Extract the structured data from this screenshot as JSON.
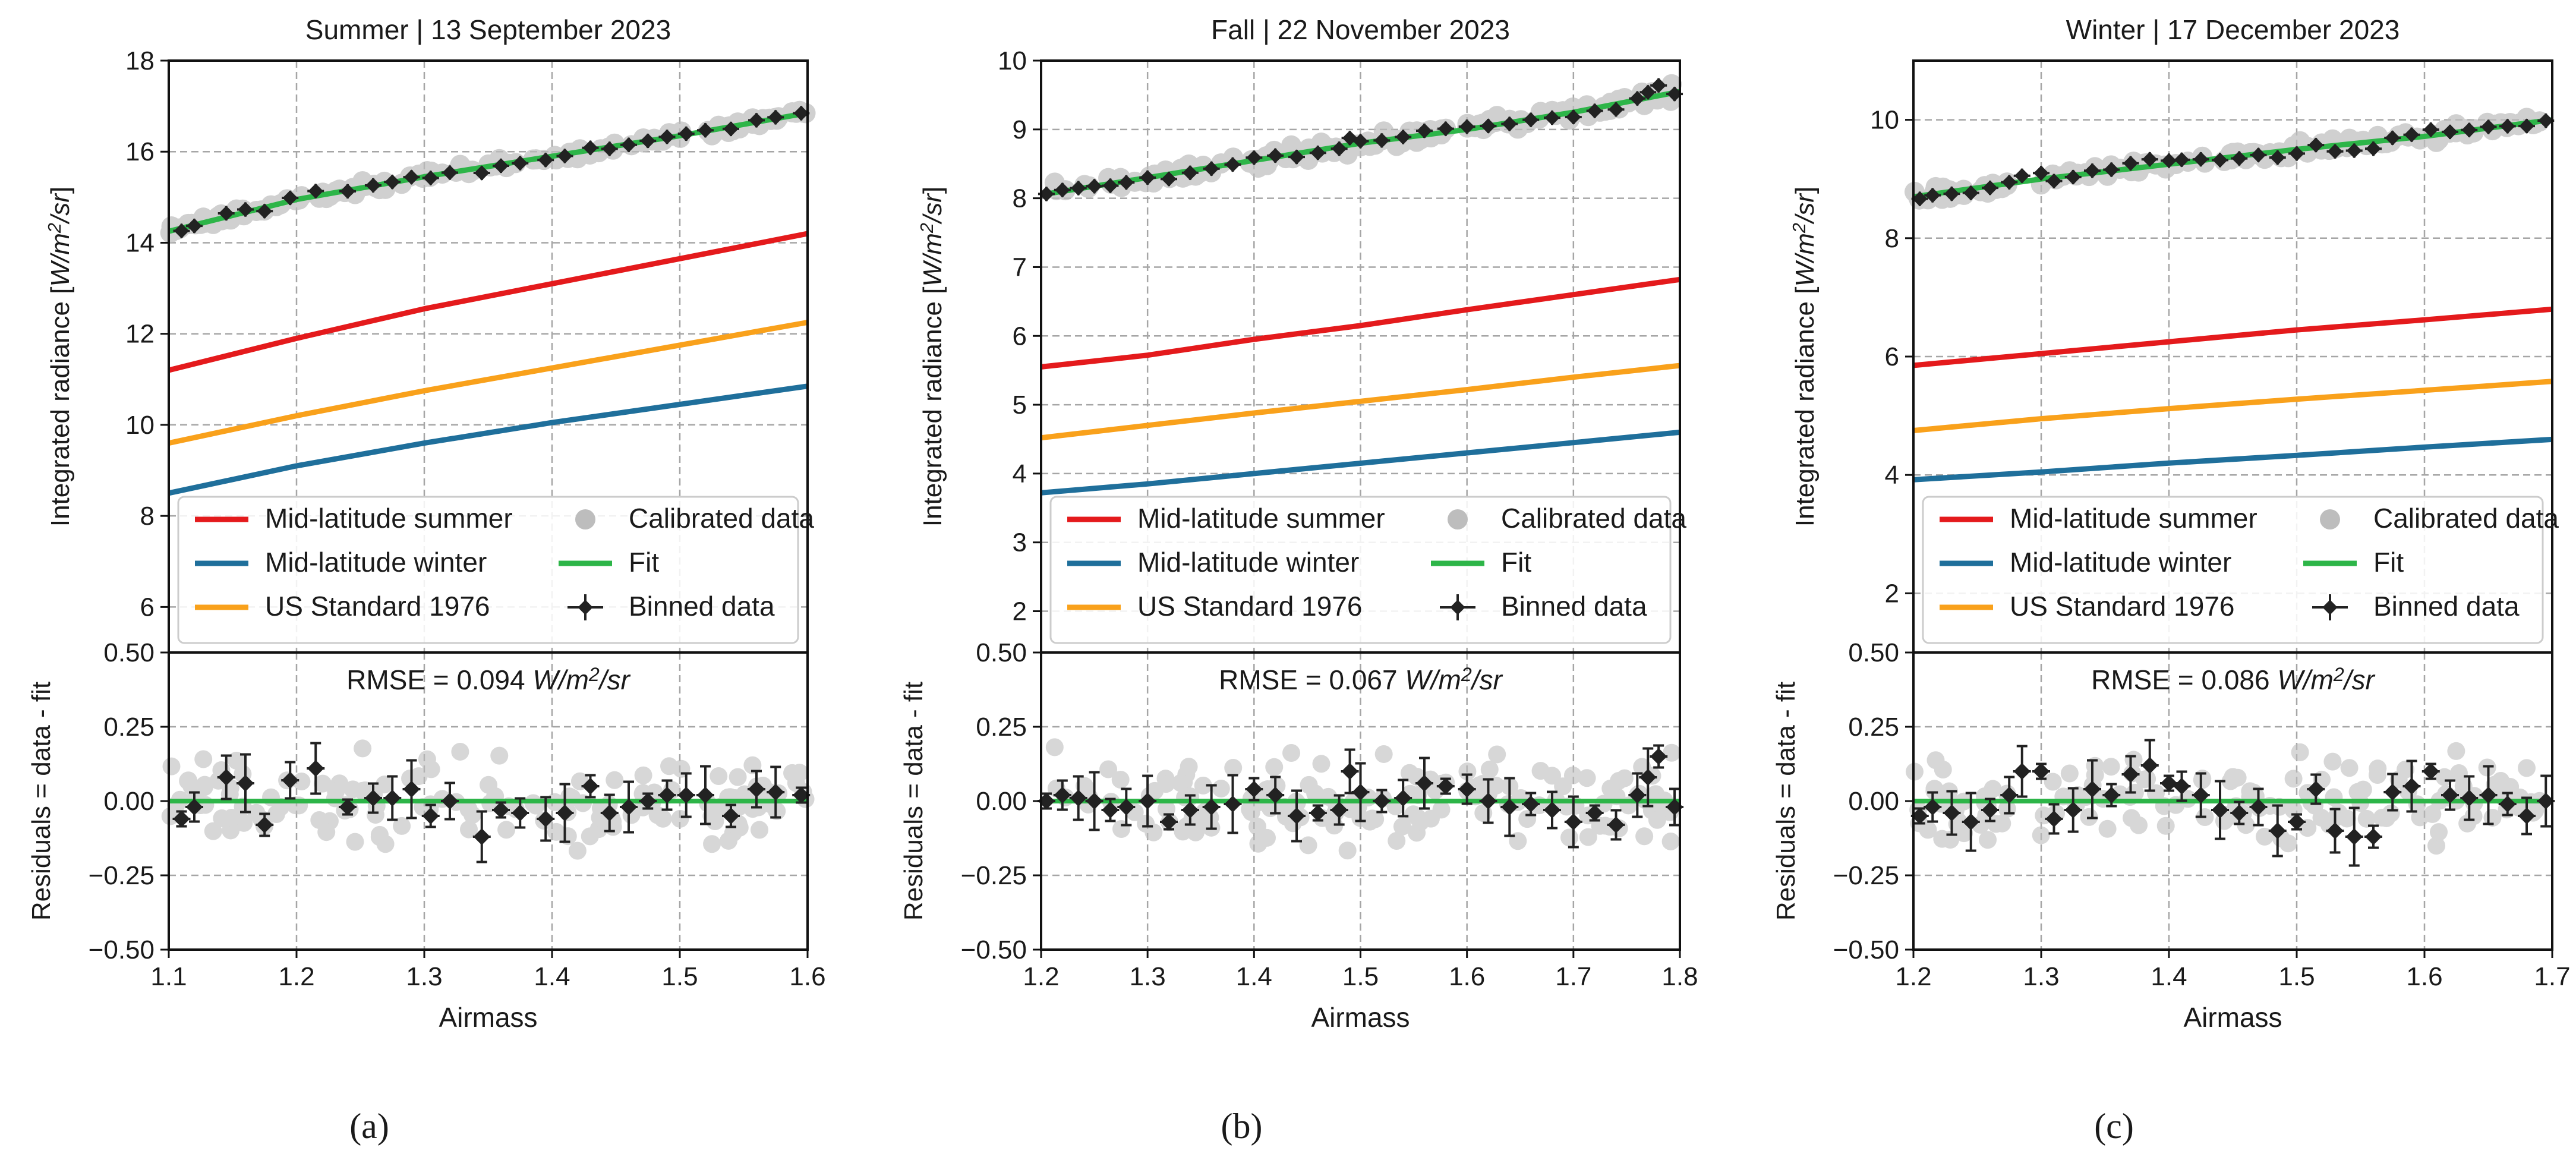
{
  "figure": {
    "legend_entries": {
      "mls": "Mid-latitude summer",
      "mlw": "Mid-latitude winter",
      "us": "US Standard 1976",
      "cal": "Calibrated data",
      "fit": "Fit",
      "bin": "Binned data"
    },
    "colors": {
      "mls": "#e41a1c",
      "mlw": "#1f6f9b",
      "us": "#f9a11b",
      "fit": "#2db548",
      "calibrated": "#bdbdbd",
      "binned": "#222222",
      "grid": "#a6a6a6"
    }
  },
  "chart_data": [
    {
      "type": "line",
      "panel_label": "(a)",
      "title": "Summer | 13 September 2023",
      "xlabel": "Airmass",
      "ylabel_top": "Integrated radiance [W/m²/sr]",
      "ylabel_bottom": "Residuals = data - fit",
      "xlim": [
        1.1,
        1.6
      ],
      "ylim_top": [
        5,
        18
      ],
      "ylim_bottom": [
        -0.5,
        0.5
      ],
      "x_ticks": [
        "1.1",
        "1.2",
        "1.3",
        "1.4",
        "1.5",
        "1.6"
      ],
      "y_ticks_top": [
        "6",
        "8",
        "10",
        "12",
        "14",
        "16",
        "18"
      ],
      "y_ticks_bottom": [
        "−0.50",
        "−0.25",
        "0.00",
        "0.25",
        "0.50"
      ],
      "rmse_text": "RMSE = 0.094 W/m²/sr",
      "grid": true,
      "legend_position": "lower center",
      "series": [
        {
          "name": "Mid-latitude summer",
          "key": "mls",
          "x": [
            1.1,
            1.2,
            1.3,
            1.4,
            1.5,
            1.6
          ],
          "y": [
            11.2,
            11.9,
            12.55,
            13.1,
            13.65,
            14.2
          ]
        },
        {
          "name": "Mid-latitude winter",
          "key": "mlw",
          "x": [
            1.1,
            1.2,
            1.3,
            1.4,
            1.5,
            1.6
          ],
          "y": [
            8.5,
            9.1,
            9.6,
            10.05,
            10.45,
            10.85
          ]
        },
        {
          "name": "US Standard 1976",
          "key": "us",
          "x": [
            1.1,
            1.2,
            1.3,
            1.4,
            1.5,
            1.6
          ],
          "y": [
            9.6,
            10.2,
            10.75,
            11.25,
            11.75,
            12.25
          ]
        },
        {
          "name": "Fit",
          "key": "fit",
          "x": [
            1.1,
            1.2,
            1.3,
            1.4,
            1.5,
            1.6
          ],
          "y": [
            14.25,
            14.95,
            15.45,
            15.9,
            16.35,
            16.85
          ]
        }
      ],
      "binned": {
        "x": [
          1.11,
          1.12,
          1.145,
          1.16,
          1.175,
          1.195,
          1.215,
          1.24,
          1.26,
          1.275,
          1.29,
          1.305,
          1.32,
          1.345,
          1.36,
          1.375,
          1.395,
          1.41,
          1.43,
          1.445,
          1.46,
          1.475,
          1.49,
          1.505,
          1.52,
          1.54,
          1.56,
          1.575,
          1.595
        ],
        "residual": [
          -0.06,
          -0.02,
          0.08,
          0.06,
          -0.08,
          0.07,
          0.11,
          -0.02,
          0.01,
          0.01,
          0.04,
          -0.05,
          0.0,
          -0.12,
          -0.03,
          -0.04,
          -0.06,
          -0.04,
          0.05,
          -0.04,
          -0.02,
          0.0,
          0.02,
          0.02,
          0.02,
          -0.05,
          0.04,
          0.03,
          0.02
        ]
      }
    },
    {
      "type": "line",
      "panel_label": "(b)",
      "title": "Fall | 22 November 2023",
      "xlabel": "Airmass",
      "ylabel_top": "Integrated radiance [W/m²/sr]",
      "ylabel_bottom": "Residuals = data - fit",
      "xlim": [
        1.2,
        1.8
      ],
      "ylim_top": [
        1.4,
        10
      ],
      "ylim_bottom": [
        -0.5,
        0.5
      ],
      "x_ticks": [
        "1.2",
        "1.3",
        "1.4",
        "1.5",
        "1.6",
        "1.7",
        "1.8"
      ],
      "y_ticks_top": [
        "2",
        "3",
        "4",
        "5",
        "6",
        "7",
        "8",
        "9",
        "10"
      ],
      "y_ticks_bottom": [
        "−0.50",
        "−0.25",
        "0.00",
        "0.25",
        "0.50"
      ],
      "rmse_text": "RMSE = 0.067 W/m²/sr",
      "grid": true,
      "legend_position": "lower center",
      "series": [
        {
          "name": "Mid-latitude summer",
          "key": "mls",
          "x": [
            1.2,
            1.3,
            1.4,
            1.5,
            1.6,
            1.7,
            1.8
          ],
          "y": [
            5.55,
            5.72,
            5.95,
            6.15,
            6.38,
            6.6,
            6.82
          ]
        },
        {
          "name": "Mid-latitude winter",
          "key": "mlw",
          "x": [
            1.2,
            1.3,
            1.4,
            1.5,
            1.6,
            1.7,
            1.8
          ],
          "y": [
            3.72,
            3.85,
            4.0,
            4.15,
            4.3,
            4.45,
            4.6
          ]
        },
        {
          "name": "US Standard 1976",
          "key": "us",
          "x": [
            1.2,
            1.3,
            1.4,
            1.5,
            1.6,
            1.7,
            1.8
          ],
          "y": [
            4.52,
            4.7,
            4.88,
            5.05,
            5.22,
            5.4,
            5.57
          ]
        },
        {
          "name": "Fit",
          "key": "fit",
          "x": [
            1.2,
            1.3,
            1.4,
            1.5,
            1.6,
            1.7,
            1.8
          ],
          "y": [
            8.05,
            8.3,
            8.55,
            8.8,
            9.0,
            9.25,
            9.55
          ]
        }
      ],
      "binned": {
        "x": [
          1.205,
          1.22,
          1.235,
          1.25,
          1.265,
          1.28,
          1.3,
          1.32,
          1.34,
          1.36,
          1.38,
          1.4,
          1.42,
          1.44,
          1.46,
          1.48,
          1.49,
          1.5,
          1.52,
          1.54,
          1.56,
          1.58,
          1.6,
          1.62,
          1.64,
          1.66,
          1.68,
          1.7,
          1.72,
          1.74,
          1.76,
          1.77,
          1.78,
          1.795
        ],
        "residual": [
          0.0,
          0.02,
          0.01,
          0.0,
          -0.03,
          -0.02,
          0.0,
          -0.07,
          -0.03,
          -0.02,
          -0.01,
          0.04,
          0.02,
          -0.05,
          -0.04,
          -0.03,
          0.1,
          0.03,
          0.0,
          0.01,
          0.06,
          0.05,
          0.04,
          0.0,
          -0.02,
          -0.01,
          -0.03,
          -0.07,
          -0.04,
          -0.08,
          0.02,
          0.08,
          0.15,
          -0.02
        ]
      }
    },
    {
      "type": "line",
      "panel_label": "(c)",
      "title": "Winter | 17 December 2023",
      "xlabel": "Airmass",
      "ylabel_top": "Integrated radiance [W/m²/sr]",
      "ylabel_bottom": "Residuals = data - fit",
      "xlim": [
        1.2,
        1.7
      ],
      "ylim_top": [
        1,
        11
      ],
      "ylim_bottom": [
        -0.5,
        0.5
      ],
      "x_ticks": [
        "1.2",
        "1.3",
        "1.4",
        "1.5",
        "1.6",
        "1.7"
      ],
      "y_ticks_top": [
        "2",
        "4",
        "6",
        "8",
        "10"
      ],
      "y_ticks_bottom": [
        "−0.50",
        "−0.25",
        "0.00",
        "0.25",
        "0.50"
      ],
      "rmse_text": "RMSE = 0.086 W/m²/sr",
      "grid": true,
      "legend_position": "lower center",
      "series": [
        {
          "name": "Mid-latitude summer",
          "key": "mls",
          "x": [
            1.2,
            1.3,
            1.4,
            1.5,
            1.6,
            1.7
          ],
          "y": [
            5.85,
            6.05,
            6.25,
            6.45,
            6.62,
            6.8
          ]
        },
        {
          "name": "Mid-latitude winter",
          "key": "mlw",
          "x": [
            1.2,
            1.3,
            1.4,
            1.5,
            1.6,
            1.7
          ],
          "y": [
            3.92,
            4.05,
            4.2,
            4.33,
            4.47,
            4.6
          ]
        },
        {
          "name": "US Standard 1976",
          "key": "us",
          "x": [
            1.2,
            1.3,
            1.4,
            1.5,
            1.6,
            1.7
          ],
          "y": [
            4.75,
            4.95,
            5.12,
            5.28,
            5.43,
            5.58
          ]
        },
        {
          "name": "Fit",
          "key": "fit",
          "x": [
            1.2,
            1.3,
            1.4,
            1.5,
            1.6,
            1.7
          ],
          "y": [
            8.7,
            9.0,
            9.25,
            9.5,
            9.72,
            10.0
          ]
        }
      ],
      "binned": {
        "x": [
          1.205,
          1.215,
          1.23,
          1.245,
          1.26,
          1.275,
          1.285,
          1.3,
          1.31,
          1.325,
          1.34,
          1.355,
          1.37,
          1.385,
          1.4,
          1.41,
          1.425,
          1.44,
          1.455,
          1.47,
          1.485,
          1.5,
          1.515,
          1.53,
          1.545,
          1.56,
          1.575,
          1.59,
          1.605,
          1.62,
          1.635,
          1.65,
          1.665,
          1.68,
          1.695
        ],
        "residual": [
          -0.05,
          -0.02,
          -0.04,
          -0.07,
          -0.03,
          0.02,
          0.1,
          0.1,
          -0.06,
          -0.03,
          0.04,
          0.02,
          0.09,
          0.12,
          0.06,
          0.05,
          0.02,
          -0.03,
          -0.04,
          -0.02,
          -0.1,
          -0.07,
          0.04,
          -0.1,
          -0.12,
          -0.12,
          0.03,
          0.05,
          0.1,
          0.02,
          0.01,
          0.02,
          -0.01,
          -0.05,
          0.0
        ]
      }
    }
  ]
}
